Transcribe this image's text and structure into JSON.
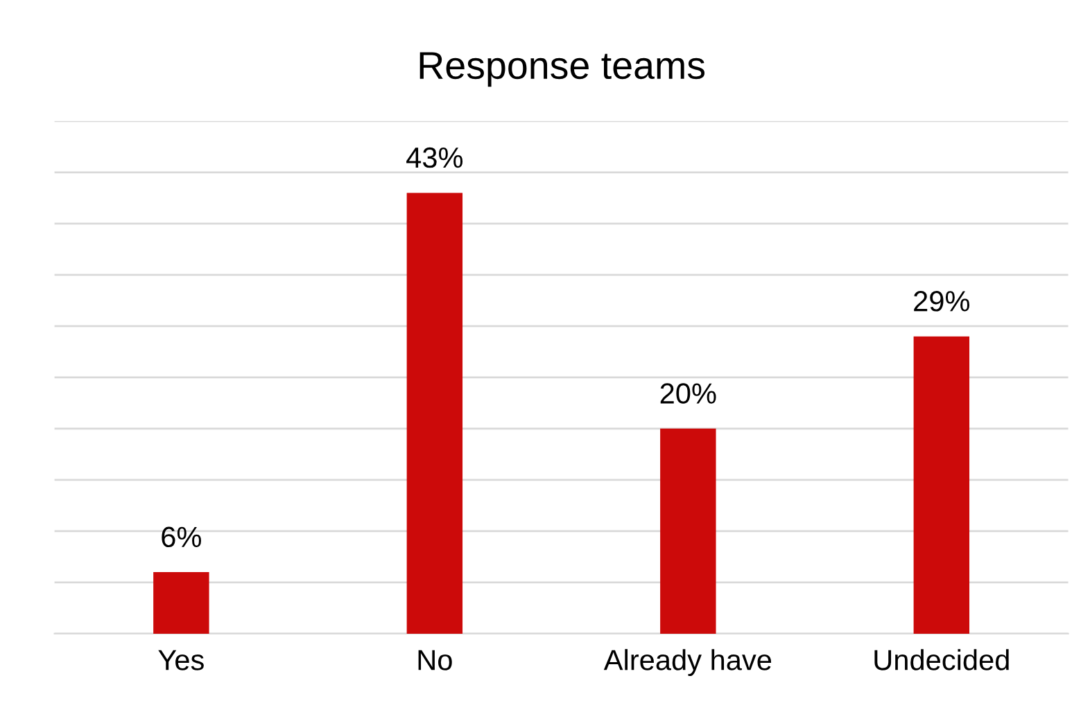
{
  "chart_data": {
    "type": "bar",
    "title": "Response teams",
    "categories": [
      "Yes",
      "No",
      "Already have",
      "Undecided"
    ],
    "values": [
      6,
      43,
      20,
      29
    ],
    "color": "#cc0a0a",
    "ylim": [
      0,
      50
    ],
    "yticks": [
      {
        "value": 0,
        "label": null
      },
      {
        "value": 5,
        "label": null
      },
      {
        "value": 10,
        "label": null
      },
      {
        "value": 15,
        "label": null
      },
      {
        "value": 20,
        "label": null
      },
      {
        "value": 25,
        "label": null
      },
      {
        "value": 30,
        "label": null
      },
      {
        "value": 35,
        "label": null
      },
      {
        "value": 40,
        "label": null
      },
      {
        "value": 45,
        "label": null
      },
      {
        "value": 50,
        "label": null
      }
    ],
    "tick_labels": "x",
    "grid": "y",
    "data_labels": true,
    "value_labels": [
      "6%",
      "43%",
      "20%",
      "29%"
    ]
  }
}
